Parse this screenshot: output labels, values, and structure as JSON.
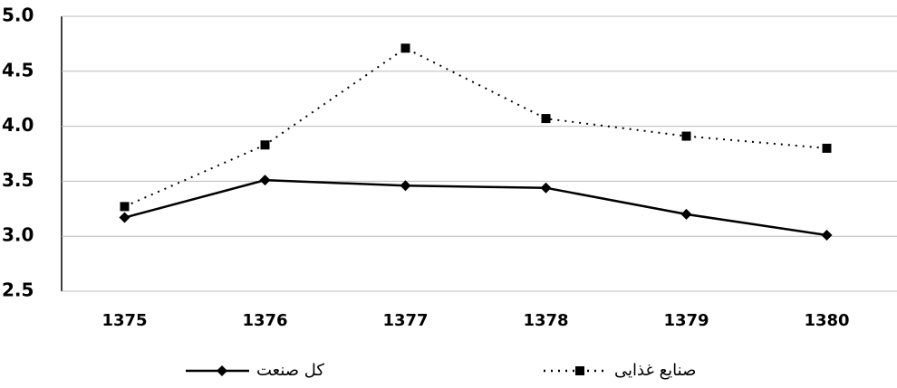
{
  "chart_data": {
    "type": "line",
    "categories": [
      "1375",
      "1376",
      "1377",
      "1378",
      "1379",
      "1380"
    ],
    "series": [
      {
        "name": "کل صنعت",
        "color": "#000000",
        "line_style": "solid",
        "marker": "diamond",
        "values": [
          3.17,
          3.51,
          3.46,
          3.44,
          3.2,
          3.01
        ]
      },
      {
        "name": "صنایع غذایی",
        "color": "#000000",
        "line_style": "dotted",
        "marker": "square",
        "values": [
          3.27,
          3.83,
          4.71,
          4.07,
          3.91,
          3.8
        ]
      }
    ],
    "ylim": [
      2.5,
      5.0
    ],
    "yticks": [
      2.5,
      {
        "value": 3,
        "label": "3.0"
      },
      3.5,
      {
        "value": 4,
        "label": "4.0"
      },
      4.5,
      {
        "value": 5,
        "label": "5.0"
      }
    ],
    "grid": true
  }
}
